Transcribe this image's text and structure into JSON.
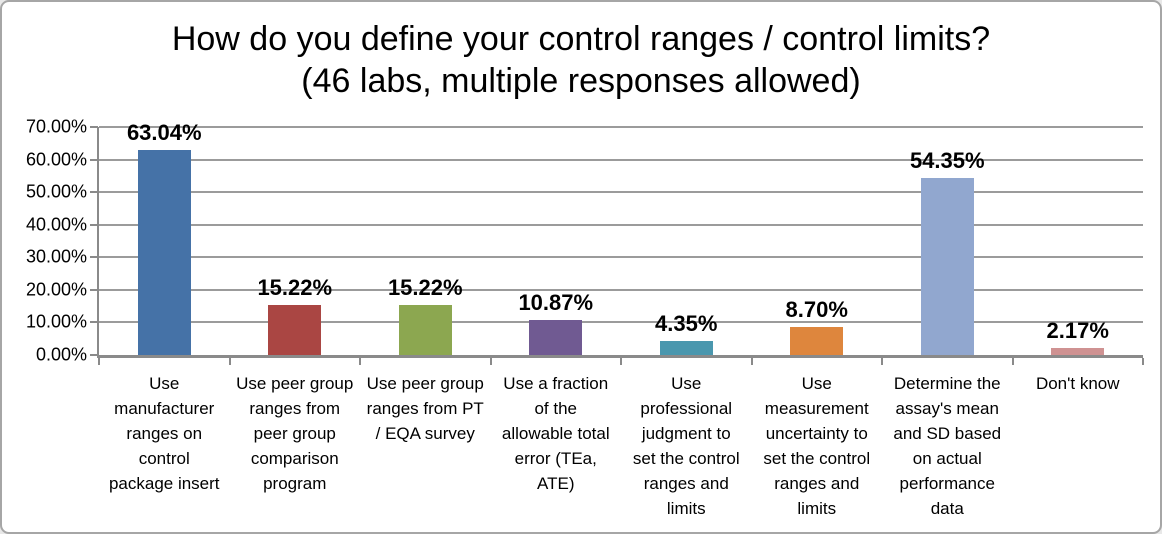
{
  "frame": {
    "background": "#ffffff",
    "border_color": "#a6a6a6"
  },
  "chart_data": {
    "type": "bar",
    "title": "How do you define your control ranges / control limits?",
    "subtitle": "(46 labs, multiple responses allowed)",
    "categories": [
      "Use\nmanufacturer\nranges on\ncontrol\npackage insert",
      "Use peer group\nranges from\npeer group\ncomparison\nprogram",
      "Use peer group\nranges from PT\n/ EQA survey",
      "Use a fraction\nof the\nallowable total\nerror (TEa,\nATE)",
      "Use\nprofessional\njudgment to\nset the control\nranges and\nlimits",
      "Use\nmeasurement\nuncertainty to\nset the control\nranges and\nlimits",
      "Determine the\nassay's mean\nand SD based\non actual\nperformance\ndata",
      "Don't know"
    ],
    "values": [
      63.04,
      15.22,
      15.22,
      10.87,
      4.35,
      8.7,
      54.35,
      2.17
    ],
    "value_labels": [
      "63.04%",
      "15.22%",
      "15.22%",
      "10.87%",
      "4.35%",
      "8.70%",
      "54.35%",
      "2.17%"
    ],
    "bar_colors": [
      "#4572A7",
      "#AA4643",
      "#8CA750",
      "#705A92",
      "#4A97AE",
      "#DE863D",
      "#91A7CF",
      "#CF9292"
    ],
    "ylim": [
      0,
      70
    ],
    "ytick_labels": [
      "0.00%",
      "10.00%",
      "20.00%",
      "30.00%",
      "40.00%",
      "50.00%",
      "60.00%",
      "70.00%"
    ],
    "grid": true,
    "legend": "none",
    "gridline_color": "#9b9b9b",
    "axis_color": "#8a8a8a",
    "text_color": "#000000"
  }
}
